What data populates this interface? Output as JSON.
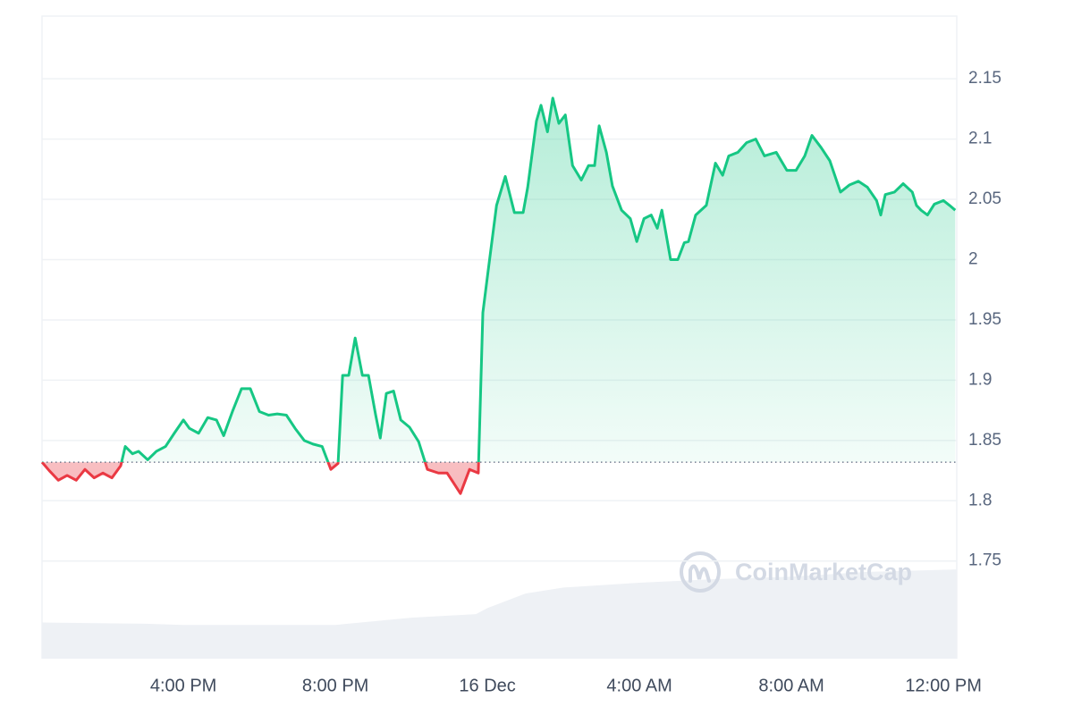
{
  "chart_data": {
    "type": "line",
    "x": [
      -11.72,
      -11.53,
      -11.29,
      -11.06,
      -10.82,
      -10.59,
      -10.35,
      -10.12,
      -9.88,
      -9.65,
      -9.53,
      -9.34,
      -9.18,
      -8.94,
      -8.71,
      -8.47,
      -8.24,
      -8.0,
      -7.84,
      -7.6,
      -7.36,
      -7.13,
      -6.94,
      -6.71,
      -6.47,
      -6.24,
      -6.0,
      -5.76,
      -5.53,
      -5.29,
      -5.06,
      -4.82,
      -4.59,
      -4.35,
      -4.12,
      -3.93,
      -3.81,
      -3.65,
      -3.48,
      -3.29,
      -3.13,
      -2.94,
      -2.82,
      -2.66,
      -2.47,
      -2.28,
      -2.05,
      -1.81,
      -1.58,
      -1.29,
      -1.06,
      -0.71,
      -0.47,
      -0.24,
      -0.12,
      0.02,
      0.24,
      0.47,
      0.71,
      0.94,
      1.06,
      1.29,
      1.41,
      1.58,
      1.72,
      1.88,
      2.05,
      2.24,
      2.47,
      2.66,
      2.82,
      2.94,
      3.13,
      3.29,
      3.53,
      3.76,
      3.93,
      4.12,
      4.31,
      4.47,
      4.59,
      4.82,
      5.01,
      5.18,
      5.29,
      5.48,
      5.76,
      6.0,
      6.19,
      6.35,
      6.59,
      6.82,
      7.06,
      7.29,
      7.6,
      7.88,
      8.12,
      8.35,
      8.54,
      8.78,
      9.01,
      9.29,
      9.53,
      9.76,
      10.0,
      10.24,
      10.35,
      10.47,
      10.71,
      10.94,
      11.18,
      11.29,
      11.41,
      11.58,
      11.76,
      12.0,
      12.16,
      12.31
    ],
    "values": [
      1.832,
      1.825,
      1.817,
      1.821,
      1.817,
      1.826,
      1.819,
      1.823,
      1.819,
      1.829,
      1.845,
      1.839,
      1.841,
      1.834,
      1.841,
      1.845,
      1.856,
      1.867,
      1.86,
      1.856,
      1.869,
      1.867,
      1.854,
      1.874,
      1.893,
      1.893,
      1.874,
      1.871,
      1.872,
      1.871,
      1.86,
      1.85,
      1.847,
      1.845,
      1.826,
      1.831,
      1.904,
      1.904,
      1.935,
      1.904,
      1.904,
      1.871,
      1.852,
      1.889,
      1.891,
      1.867,
      1.861,
      1.849,
      1.826,
      1.823,
      1.823,
      1.806,
      1.826,
      1.823,
      1.956,
      1.991,
      2.045,
      2.069,
      2.039,
      2.039,
      2.06,
      2.115,
      2.128,
      2.106,
      2.134,
      2.113,
      2.12,
      2.078,
      2.066,
      2.078,
      2.078,
      2.111,
      2.089,
      2.061,
      2.041,
      2.034,
      2.015,
      2.034,
      2.037,
      2.026,
      2.041,
      2.0,
      2.0,
      2.014,
      2.015,
      2.037,
      2.045,
      2.08,
      2.07,
      2.086,
      2.089,
      2.097,
      2.1,
      2.086,
      2.089,
      2.074,
      2.074,
      2.086,
      2.103,
      2.093,
      2.082,
      2.056,
      2.062,
      2.065,
      2.06,
      2.049,
      2.037,
      2.054,
      2.056,
      2.063,
      2.056,
      2.045,
      2.041,
      2.037,
      2.046,
      2.049,
      2.045,
      2.041
    ],
    "baseline": 1.832,
    "color_above": "#16c784",
    "color_below": "#ea3943",
    "volume_area": {
      "x": [
        -11.72,
        -9.0,
        -8.0,
        -4.0,
        -2.0,
        -0.3,
        0.0,
        1.0,
        2.0,
        4.0,
        6.0,
        8.0,
        10.0,
        12.35
      ],
      "values": [
        1.699,
        1.698,
        1.697,
        1.697,
        1.703,
        1.706,
        1.711,
        1.723,
        1.728,
        1.732,
        1.735,
        1.737,
        1.741,
        1.743
      ],
      "color": "#eef1f5"
    },
    "xlim": [
      -11.72,
      12.35
    ],
    "ylim": [
      1.669,
      2.202
    ],
    "xticks": [
      {
        "value": -8,
        "label": "4:00 PM"
      },
      {
        "value": -4,
        "label": "8:00 PM"
      },
      {
        "value": 0,
        "label": "16 Dec"
      },
      {
        "value": 4,
        "label": "4:00 AM"
      },
      {
        "value": 8,
        "label": "8:00 AM"
      },
      {
        "value": 12,
        "label": "12:00 PM"
      }
    ],
    "yticks": [
      1.75,
      1.8,
      1.85,
      1.9,
      1.95,
      2.0,
      2.05,
      2.1,
      2.15
    ],
    "grid": true,
    "watermark": "CoinMarketCap"
  }
}
